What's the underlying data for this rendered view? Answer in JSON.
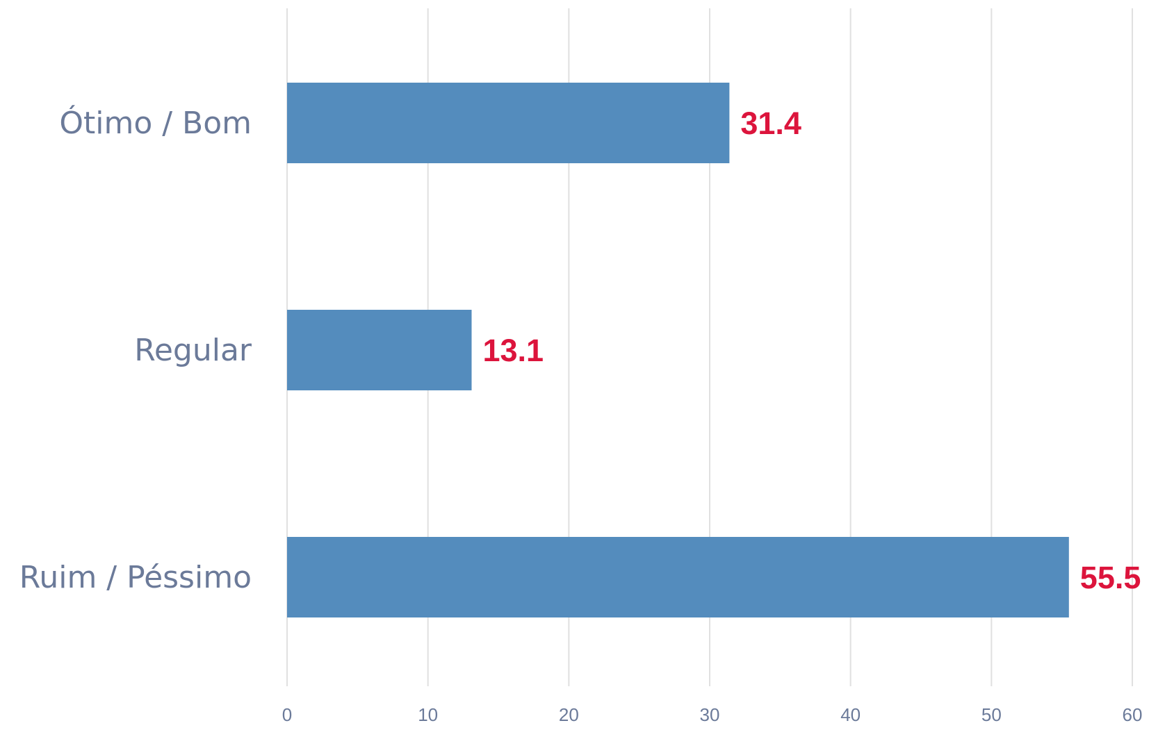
{
  "chart_data": {
    "type": "bar",
    "orientation": "horizontal",
    "categories": [
      "Ótimo / Bom",
      "Regular",
      "Ruim / Péssimo"
    ],
    "values": [
      31.4,
      13.1,
      55.5
    ],
    "value_labels": [
      "31.4",
      "13.1",
      "55.5"
    ],
    "xlim": [
      0,
      60
    ],
    "x_ticks": [
      0,
      10,
      20,
      30,
      40,
      50,
      60
    ],
    "x_tick_labels": [
      "0",
      "10",
      "20",
      "30",
      "40",
      "50",
      "60"
    ],
    "grid": true,
    "legend": false,
    "colors": {
      "bar": "#548cbd",
      "value_label": "#dc143c",
      "category_label": "#6b7a99",
      "tick_label": "#6b7a99",
      "grid": "#e0e0e0"
    }
  }
}
